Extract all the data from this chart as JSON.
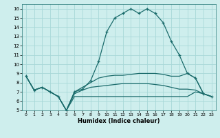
{
  "xlabel": "Humidex (Indice chaleur)",
  "background_color": "#ceeeed",
  "grid_color": "#a8d8d8",
  "line_color": "#1a6b6b",
  "xlim": [
    -0.5,
    23.5
  ],
  "ylim": [
    5,
    16.5
  ],
  "xticks": [
    0,
    1,
    2,
    3,
    4,
    5,
    6,
    7,
    8,
    9,
    10,
    11,
    12,
    13,
    14,
    15,
    16,
    17,
    18,
    19,
    20,
    21,
    22,
    23
  ],
  "yticks": [
    5,
    6,
    7,
    8,
    9,
    10,
    11,
    12,
    13,
    14,
    15,
    16
  ],
  "series": [
    [
      8.7,
      7.2,
      7.5,
      7.0,
      6.5,
      5.0,
      7.0,
      7.3,
      8.2,
      10.3,
      13.5,
      15.0,
      15.5,
      16.0,
      15.5,
      16.0,
      15.5,
      14.5,
      12.5,
      11.0,
      9.0,
      8.5,
      6.8,
      6.5
    ],
    [
      8.7,
      7.2,
      7.5,
      7.0,
      6.5,
      5.0,
      7.0,
      7.5,
      8.0,
      8.5,
      8.7,
      8.8,
      8.8,
      8.9,
      9.0,
      9.0,
      9.0,
      8.9,
      8.7,
      8.7,
      9.0,
      8.5,
      6.8,
      6.5
    ],
    [
      8.7,
      7.2,
      7.5,
      7.0,
      6.5,
      5.0,
      6.8,
      7.2,
      7.5,
      7.6,
      7.7,
      7.8,
      7.9,
      7.9,
      7.9,
      7.9,
      7.8,
      7.7,
      7.5,
      7.3,
      7.3,
      7.2,
      6.8,
      6.5
    ],
    [
      8.7,
      7.2,
      7.5,
      7.0,
      6.5,
      5.0,
      6.5,
      6.5,
      6.5,
      6.5,
      6.5,
      6.5,
      6.5,
      6.5,
      6.5,
      6.5,
      6.5,
      6.5,
      6.5,
      6.5,
      6.5,
      7.0,
      6.8,
      6.5
    ]
  ]
}
